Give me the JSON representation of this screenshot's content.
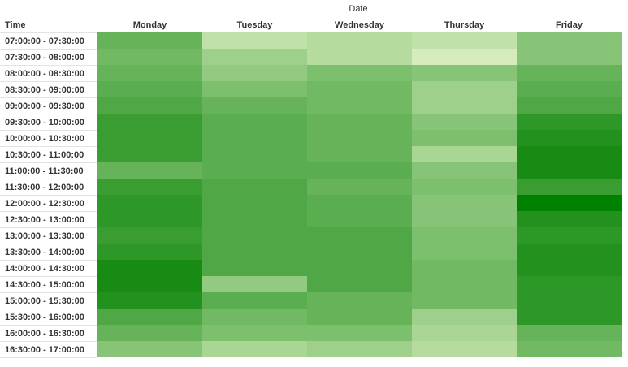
{
  "chart_data": {
    "type": "heatmap",
    "title": "",
    "group_label": "Date",
    "row_header": "Time",
    "columns": [
      "Monday",
      "Tuesday",
      "Wednesday",
      "Thursday",
      "Friday"
    ],
    "rows": [
      "07:00:00 - 07:30:00",
      "07:30:00 - 08:00:00",
      "08:00:00 - 08:30:00",
      "08:30:00 - 09:00:00",
      "09:00:00 - 09:30:00",
      "09:30:00 - 10:00:00",
      "10:00:00 - 10:30:00",
      "10:30:00 - 11:00:00",
      "11:00:00 - 11:30:00",
      "11:30:00 - 12:00:00",
      "12:00:00 - 12:30:00",
      "12:30:00 - 13:00:00",
      "13:00:00 - 13:30:00",
      "13:30:00 - 14:00:00",
      "14:00:00 - 14:30:00",
      "14:30:00 - 15:00:00",
      "15:00:00 - 15:30:00",
      "15:30:00 - 16:00:00",
      "16:00:00 - 16:30:00",
      "16:30:00 - 17:00:00"
    ],
    "values": [
      [
        0.55,
        0.15,
        0.2,
        0.15,
        0.4
      ],
      [
        0.5,
        0.3,
        0.2,
        0.05,
        0.4
      ],
      [
        0.55,
        0.35,
        0.45,
        0.4,
        0.55
      ],
      [
        0.6,
        0.45,
        0.5,
        0.3,
        0.6
      ],
      [
        0.65,
        0.55,
        0.5,
        0.3,
        0.65
      ],
      [
        0.75,
        0.6,
        0.55,
        0.4,
        0.8
      ],
      [
        0.75,
        0.6,
        0.55,
        0.45,
        0.85
      ],
      [
        0.75,
        0.6,
        0.55,
        0.25,
        0.9
      ],
      [
        0.55,
        0.6,
        0.6,
        0.4,
        0.9
      ],
      [
        0.75,
        0.65,
        0.55,
        0.45,
        0.75
      ],
      [
        0.8,
        0.65,
        0.6,
        0.4,
        1.0
      ],
      [
        0.8,
        0.65,
        0.6,
        0.4,
        0.85
      ],
      [
        0.75,
        0.65,
        0.65,
        0.45,
        0.8
      ],
      [
        0.8,
        0.65,
        0.65,
        0.45,
        0.85
      ],
      [
        0.9,
        0.65,
        0.65,
        0.5,
        0.85
      ],
      [
        0.9,
        0.35,
        0.65,
        0.5,
        0.8
      ],
      [
        0.85,
        0.6,
        0.55,
        0.5,
        0.8
      ],
      [
        0.65,
        0.5,
        0.55,
        0.3,
        0.8
      ],
      [
        0.55,
        0.45,
        0.45,
        0.25,
        0.55
      ],
      [
        0.4,
        0.25,
        0.3,
        0.2,
        0.5
      ]
    ],
    "color_scale": {
      "low": "#e2f2c6",
      "high": "#008000"
    },
    "legend": "none"
  }
}
